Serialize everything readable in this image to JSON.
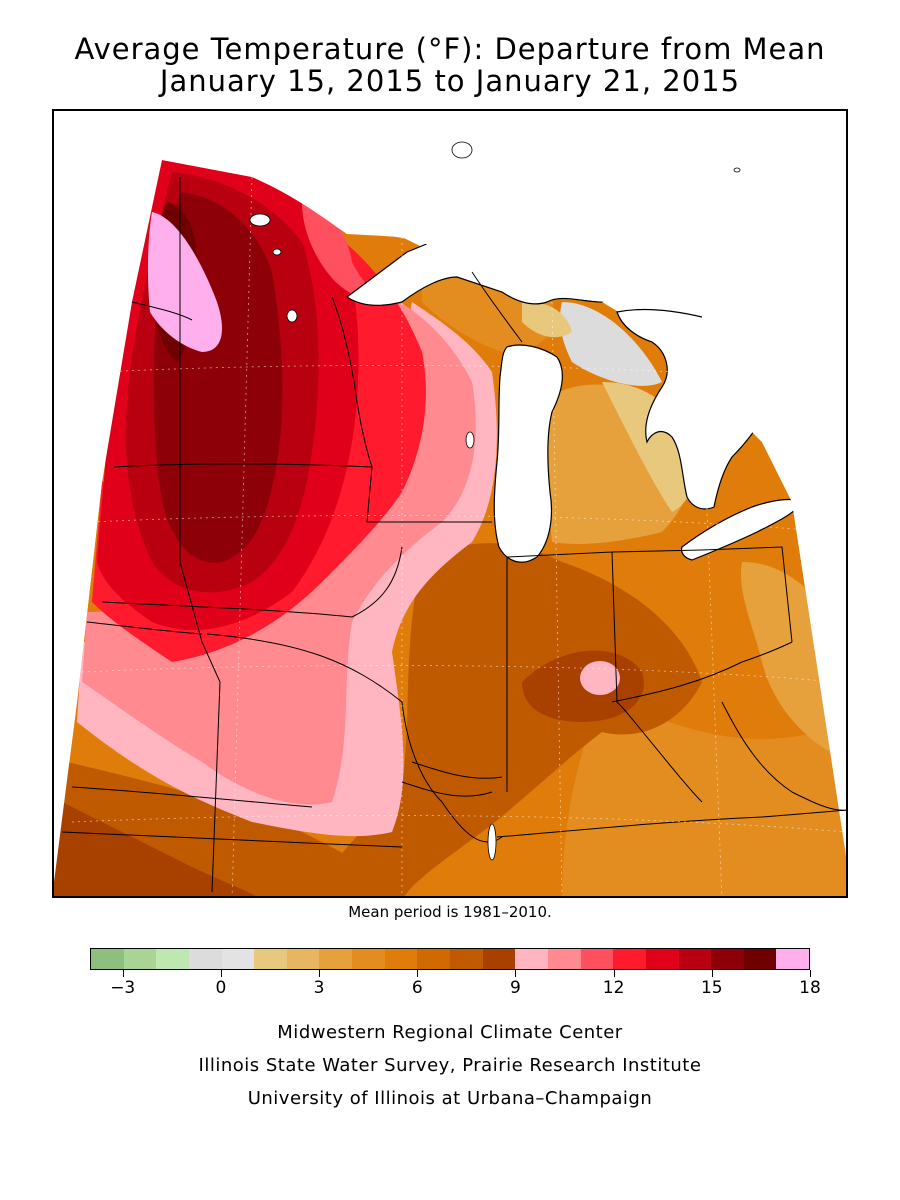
{
  "title": {
    "line1": "Average Temperature (°F): Departure from Mean",
    "line2": "January 15, 2015 to January 21, 2015"
  },
  "mean_period": "Mean period is 1981–2010.",
  "legend": {
    "colors": [
      "#8fbf7f",
      "#a8d595",
      "#bfe7b0",
      "#dcdcdc",
      "#e3e3e3",
      "#e8c87c",
      "#e8b560",
      "#e6a03c",
      "#e38d20",
      "#e07c0a",
      "#d06a00",
      "#c05a00",
      "#a84000",
      "#ffb6c1",
      "#ff8a90",
      "#ff5060",
      "#ff1a2e",
      "#e0001a",
      "#b80010",
      "#8e0008",
      "#6e0000",
      "#ffb0ec"
    ],
    "tick_labels": [
      "−3",
      "0",
      "3",
      "6",
      "9",
      "12",
      "15",
      "18"
    ],
    "tick_values": [
      -3,
      0,
      3,
      6,
      9,
      12,
      15,
      18
    ],
    "min": -4,
    "max": 18
  },
  "credits": {
    "line1": "Midwestern Regional Climate Center",
    "line2": "Illinois State Water Survey, Prairie Research Institute",
    "line3": "University of Illinois at Urbana–Champaign"
  }
}
